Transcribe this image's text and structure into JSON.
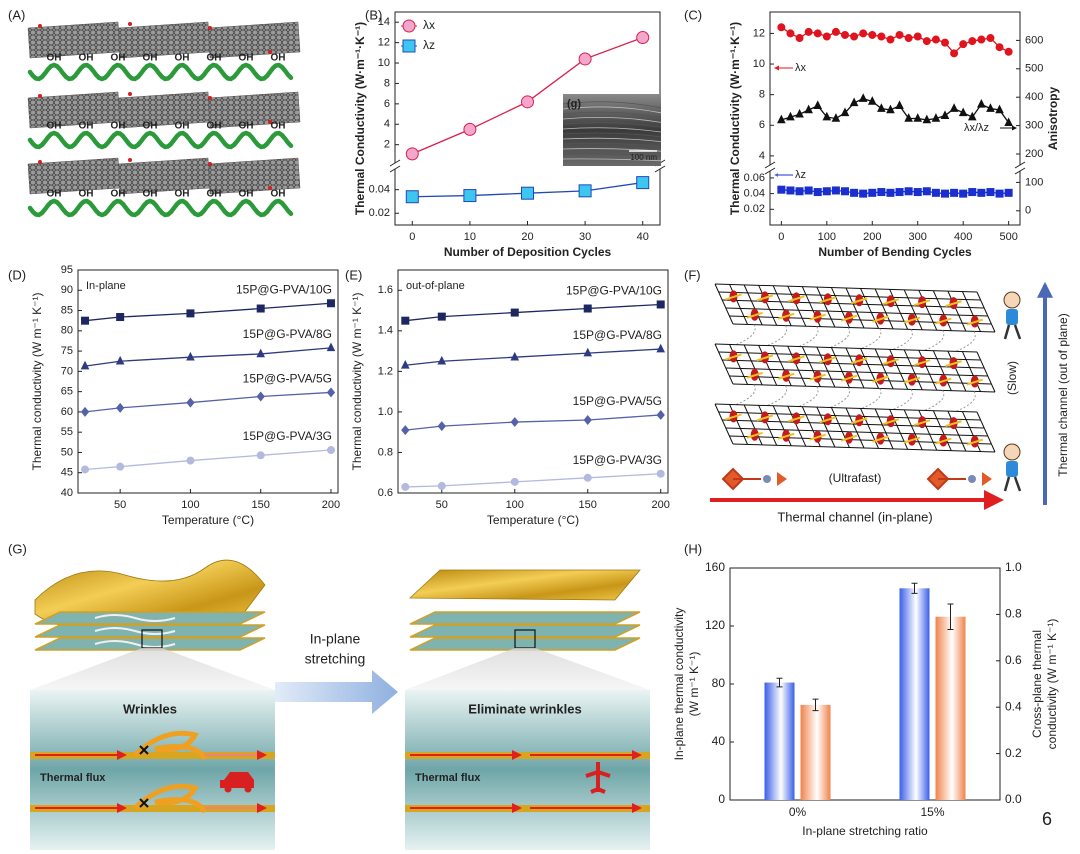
{
  "panel_labels": [
    "(A)",
    "(B)",
    "(C)",
    "(D)",
    "(E)",
    "(F)",
    "(G)",
    "(H)"
  ],
  "panel_a": {
    "group": "OH"
  },
  "chart_data": [
    {
      "type": "line",
      "xlabel": "Number of Deposition Cycles",
      "ylabel": "Thermal Conductivity (W·m⁻¹·K⁻¹)",
      "x": [
        0,
        10,
        20,
        30,
        40
      ],
      "xlim": [
        -3,
        43
      ],
      "xticks": [
        0,
        10,
        20,
        30,
        40
      ],
      "ylim": [
        0.5,
        15
      ],
      "yticks": [
        2,
        4,
        6,
        8,
        10,
        12,
        14
      ],
      "ylim_lower": [
        0.01,
        0.055
      ],
      "yticks_lower": [
        0.02,
        0.04
      ],
      "legend": "upper left",
      "series": [
        {
          "name": "λx",
          "color": "#d8204a",
          "fill": "#f4a6cc",
          "marker": "circle",
          "values": [
            1.1,
            3.5,
            6.2,
            10.4,
            12.5
          ]
        },
        {
          "name": "λz",
          "color": "#2448b8",
          "fill": "#3cc6f0",
          "marker": "square",
          "axis": "lower",
          "values": [
            0.034,
            0.035,
            0.037,
            0.039,
            0.046
          ]
        }
      ],
      "inset": {
        "label": "(g)",
        "scale": "100 nm"
      }
    },
    {
      "type": "line",
      "xlabel": "Number of Bending Cycles",
      "ylabel": "Thermal Conductivity (W·m⁻¹·K⁻¹)",
      "y2label": "Anisotropy",
      "x": [
        0,
        20,
        40,
        60,
        80,
        100,
        120,
        140,
        160,
        180,
        200,
        220,
        240,
        260,
        280,
        300,
        320,
        340,
        360,
        380,
        400,
        420,
        440,
        460,
        480,
        500
      ],
      "xlim": [
        -25,
        525
      ],
      "xticks": [
        0,
        100,
        200,
        300,
        400,
        500
      ],
      "ylim": [
        3.6,
        13.4
      ],
      "yticks": [
        4,
        6,
        8,
        10,
        12
      ],
      "ylim_lower": [
        0,
        0.065
      ],
      "yticks_lower": [
        0.02,
        0.04,
        0.06
      ],
      "y2lim": [
        -50,
        700
      ],
      "y2ticks": [
        0,
        100,
        200,
        300,
        400,
        500,
        600
      ],
      "legend": "inline",
      "series": [
        {
          "name": "λx",
          "color": "#e0141e",
          "fill": "#e0141e",
          "marker": "circle",
          "values": [
            12.4,
            12.0,
            11.7,
            12.1,
            12.0,
            11.8,
            12.1,
            11.9,
            11.8,
            12.0,
            11.9,
            11.8,
            11.6,
            11.9,
            11.7,
            11.8,
            11.5,
            11.6,
            11.4,
            10.7,
            11.3,
            11.5,
            11.6,
            11.7,
            11.1,
            10.8
          ]
        },
        {
          "name": "λx/λz",
          "color": "#111111",
          "fill": "#111111",
          "marker": "triangle",
          "axis": "y2",
          "values": [
            320,
            330,
            340,
            355,
            370,
            330,
            325,
            345,
            380,
            395,
            385,
            360,
            355,
            370,
            325,
            325,
            320,
            325,
            335,
            360,
            345,
            330,
            375,
            360,
            355,
            310
          ]
        },
        {
          "name": "λz",
          "color": "#1a2fd0",
          "fill": "#1a2fd0",
          "marker": "square",
          "axis": "lower",
          "values": [
            0.045,
            0.044,
            0.043,
            0.044,
            0.042,
            0.043,
            0.044,
            0.043,
            0.041,
            0.04,
            0.041,
            0.042,
            0.041,
            0.042,
            0.043,
            0.042,
            0.043,
            0.041,
            0.04,
            0.041,
            0.04,
            0.042,
            0.041,
            0.042,
            0.04,
            0.041
          ]
        }
      ]
    },
    {
      "type": "line",
      "xlabel": "Temperature (°C)",
      "ylabel": "Thermal conductivity (W m⁻¹ K⁻¹)",
      "annotation": "In-plane",
      "x": [
        25,
        50,
        100,
        150,
        200
      ],
      "xlim": [
        20,
        205
      ],
      "xticks": [
        50,
        100,
        150,
        200
      ],
      "ylim": [
        40,
        95
      ],
      "yticks": [
        40,
        45,
        50,
        55,
        60,
        65,
        70,
        75,
        80,
        85,
        90,
        95
      ],
      "legend": "inline",
      "series": [
        {
          "name": "15P@G-PVA/10G",
          "color": "#1e2860",
          "fill": "#1e2860",
          "marker": "square",
          "values": [
            82.5,
            83.4,
            84.3,
            85.5,
            86.8
          ]
        },
        {
          "name": "15P@G-PVA/8G",
          "color": "#2e3b82",
          "fill": "#2e3b82",
          "marker": "triangle",
          "values": [
            71.3,
            72.5,
            73.5,
            74.3,
            75.8
          ]
        },
        {
          "name": "15P@G-PVA/5G",
          "color": "#5562a8",
          "fill": "#5562a8",
          "marker": "diamond",
          "values": [
            60,
            61,
            62.3,
            63.8,
            64.8
          ]
        },
        {
          "name": "15P@G-PVA/3G",
          "color": "#b4b9de",
          "fill": "#b4b9de",
          "marker": "circle",
          "values": [
            45.8,
            46.5,
            48,
            49.3,
            50.6
          ]
        }
      ]
    },
    {
      "type": "line",
      "xlabel": "Temperature (°C)",
      "ylabel": "Thermal conductivity (W m⁻¹ K⁻¹)",
      "annotation": "out-of-plane",
      "x": [
        25,
        50,
        100,
        150,
        200
      ],
      "xlim": [
        20,
        205
      ],
      "xticks": [
        50,
        100,
        150,
        200
      ],
      "ylim": [
        0.6,
        1.7
      ],
      "yticks": [
        0.6,
        0.8,
        {
          "value": 1,
          "label": "1.0"
        },
        1.2,
        1.4,
        1.6
      ],
      "legend": "inline",
      "series": [
        {
          "name": "15P@G-PVA/10G",
          "color": "#1e2860",
          "fill": "#1e2860",
          "marker": "square",
          "values": [
            1.45,
            1.47,
            1.49,
            1.51,
            1.53
          ]
        },
        {
          "name": "15P@G-PVA/8G",
          "color": "#2e3b82",
          "fill": "#2e3b82",
          "marker": "triangle",
          "values": [
            1.23,
            1.25,
            1.27,
            1.29,
            1.31
          ]
        },
        {
          "name": "15P@G-PVA/5G",
          "color": "#5562a8",
          "fill": "#5562a8",
          "marker": "diamond",
          "values": [
            0.91,
            0.93,
            0.95,
            0.96,
            0.985
          ]
        },
        {
          "name": "15P@G-PVA/3G",
          "color": "#b4b9de",
          "fill": "#b4b9de",
          "marker": "circle",
          "values": [
            0.63,
            0.635,
            0.655,
            0.675,
            0.695
          ]
        }
      ]
    },
    {
      "type": "bar",
      "xlabel": "In-plane stretching ratio",
      "ylabel": [
        "In-plane thermal conductivity",
        "(W m⁻¹ K⁻¹)"
      ],
      "y2label": [
        "Cross-plane thermal",
        "conductivity (W m⁻¹ K⁻¹)"
      ],
      "categories": [
        "0%",
        "15%"
      ],
      "ylim": [
        0,
        160
      ],
      "yticks": [
        0,
        40,
        80,
        120,
        160
      ],
      "y2lim": [
        0,
        1
      ],
      "y2ticks": [
        {
          "value": 0,
          "label": "0.0"
        },
        0.2,
        0.4,
        0.6,
        0.8,
        {
          "value": 1,
          "label": "1.0"
        }
      ],
      "series": [
        {
          "color": "#3a5ee8",
          "values": [
            81,
            146
          ],
          "errors": [
            3,
            3.5
          ]
        },
        {
          "color": "#f0824a",
          "axis": "y2",
          "values": [
            0.41,
            0.79
          ],
          "errors": [
            0.025,
            0.055
          ]
        }
      ]
    }
  ],
  "panel_f": {
    "fast": "(Ultrafast)",
    "slow": "(Slow)",
    "in_plane": "Thermal channel (in-plane)",
    "out_of_plane": "Thermal channel (out of plane)"
  },
  "panel_g": {
    "left_title": "Wrinkles",
    "right_title": "Eliminate wrinkles",
    "arrow": [
      "In-plane",
      "stretching"
    ],
    "flux": "Thermal flux"
  },
  "page_number": "6"
}
